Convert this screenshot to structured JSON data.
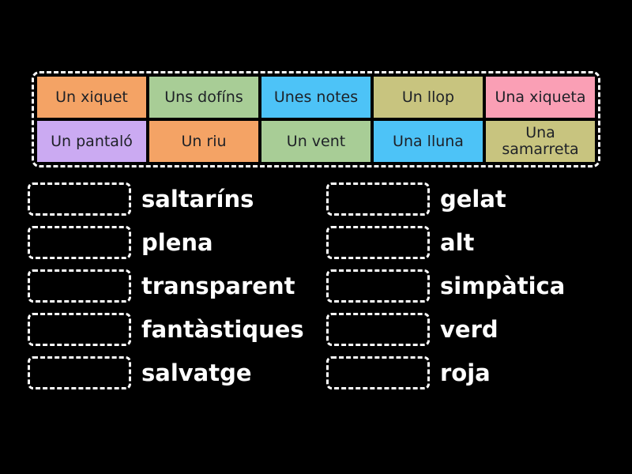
{
  "activity": {
    "type": "match-up-game",
    "background_color": "#000000",
    "slot_border_color": "#ffffff",
    "label_text_color": "#ffffff",
    "tile_text_color": "#1e2127"
  },
  "bank": {
    "tiles": [
      {
        "label": "Un xiquet",
        "color": "#F4A365"
      },
      {
        "label": "Uns dofíns",
        "color": "#A8CD96"
      },
      {
        "label": "Unes notes",
        "color": "#4DC3F7"
      },
      {
        "label": "Un llop",
        "color": "#C8C47F"
      },
      {
        "label": "Una xiqueta",
        "color": "#FA9FB5"
      },
      {
        "label": "Un pantaló",
        "color": "#CBAAF2"
      },
      {
        "label": "Un riu",
        "color": "#F4A365"
      },
      {
        "label": "Un vent",
        "color": "#A8CD96"
      },
      {
        "label": "Una lluna",
        "color": "#4DC3F7"
      },
      {
        "label": "Una samarreta",
        "color": "#C8C47F"
      }
    ]
  },
  "pairs": {
    "left": [
      "saltaríns",
      "plena",
      "transparent",
      "fantàstiques",
      "salvatge"
    ],
    "right": [
      "gelat",
      "alt",
      "simpàtica",
      "verd",
      "roja"
    ]
  }
}
